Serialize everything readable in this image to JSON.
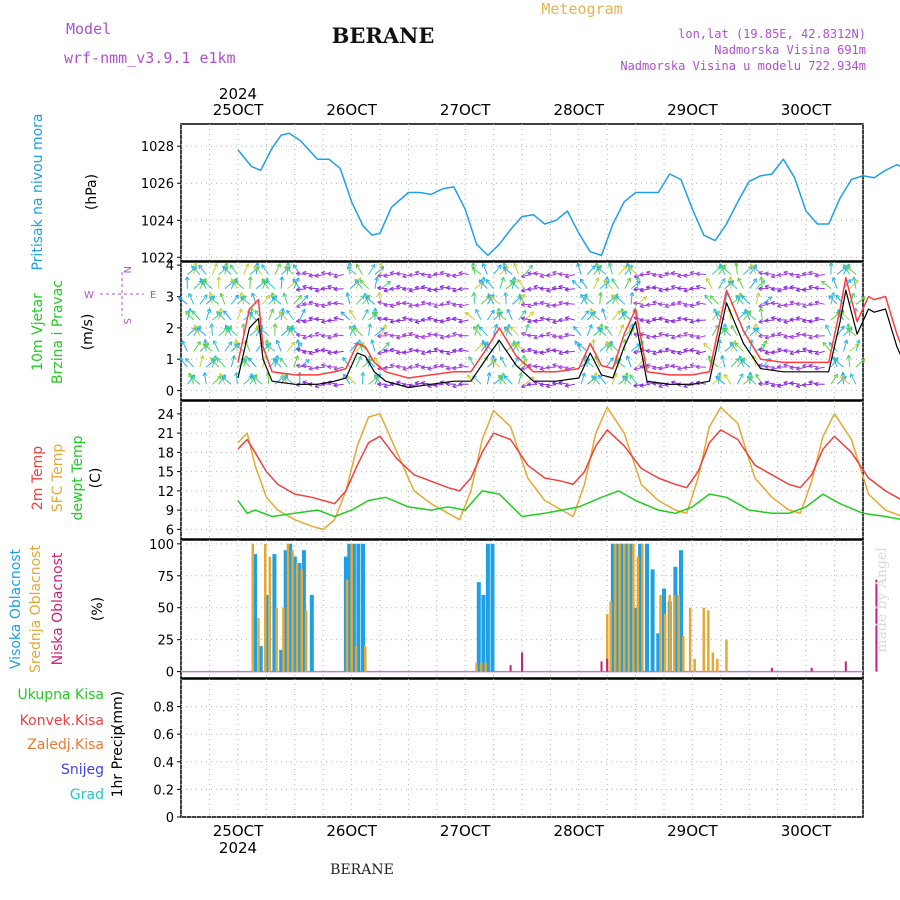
{
  "header": {
    "model_label": "Model",
    "model_name": "wrf-nmm_v3.9.1 e1km",
    "station": "BERANE",
    "product": "Meteogram",
    "coords": "lon,lat (19.85E, 42.8312N)",
    "elevation": "Nadmorska Visina 691m",
    "model_elevation": "Nadmorska Visina u modelu 722.934m"
  },
  "colors": {
    "pressure": "#1ea0e6",
    "wind_speed": "#000000",
    "wind_gust": "#ff3c3c",
    "temp_2m": "#f04040",
    "temp_sfc": "#e6a832",
    "dewpoint": "#22cc22",
    "cloud_high": "#1ea0e6",
    "cloud_mid": "#e6a832",
    "cloud_low": "#cc1f7a",
    "model_label": "#b050d0",
    "product": "#e6b450",
    "precip_total": "#22cc22",
    "precip_conv": "#f04040",
    "precip_frozen": "#f07830",
    "snow": "#4040f0",
    "graupel": "#20c8c8"
  },
  "date_axis": {
    "year": "2024",
    "labels": [
      "25OCT",
      "26OCT",
      "27OCT",
      "28OCT",
      "29OCT",
      "30OCT"
    ]
  },
  "footer": {
    "station": "BERANE",
    "credit": "made by Angel"
  },
  "chart_data": [
    {
      "type": "line",
      "panel": "pressure",
      "ylabel": [
        "Pritisak na nivou mora",
        "(hPa)"
      ],
      "ylim": [
        1021.8,
        1029.2
      ],
      "yticks": [
        1022,
        1024,
        1026,
        1028
      ],
      "xlim": [
        0,
        6.12
      ],
      "grid": true,
      "series": [
        {
          "x": [
            0,
            0.12,
            0.2,
            0.3,
            0.38,
            0.45,
            0.55,
            0.7,
            0.8,
            0.9,
            1.0,
            1.1,
            1.18,
            1.25,
            1.35,
            1.5,
            1.6,
            1.7,
            1.8,
            1.9,
            2.0,
            2.1,
            2.2,
            2.3,
            2.4,
            2.5,
            2.6,
            2.7,
            2.8,
            2.9,
            3.0,
            3.1,
            3.2,
            3.3,
            3.4,
            3.5,
            3.6,
            3.7,
            3.8,
            3.9,
            4.0,
            4.1,
            4.2,
            4.3,
            4.4,
            4.5,
            4.6,
            4.7,
            4.8,
            4.9,
            5.0,
            5.1,
            5.2,
            5.3,
            5.4,
            5.5,
            5.6,
            5.7,
            5.8,
            5.9,
            6.0,
            6.12
          ],
          "values": [
            1027.8,
            1026.9,
            1026.7,
            1027.9,
            1028.6,
            1028.7,
            1028.3,
            1027.3,
            1027.3,
            1026.8,
            1025.0,
            1023.7,
            1023.2,
            1023.3,
            1024.7,
            1025.5,
            1025.5,
            1025.4,
            1025.7,
            1025.8,
            1024.6,
            1022.7,
            1022.1,
            1022.7,
            1023.5,
            1024.2,
            1024.3,
            1023.8,
            1024.0,
            1024.5,
            1023.3,
            1022.3,
            1022.1,
            1023.8,
            1025.0,
            1025.5,
            1025.5,
            1025.5,
            1026.5,
            1026.2,
            1024.6,
            1023.2,
            1022.9,
            1023.8,
            1025.0,
            1026.1,
            1026.4,
            1026.5,
            1027.3,
            1026.3,
            1024.5,
            1023.8,
            1023.8,
            1025.2,
            1026.2,
            1026.4,
            1026.3,
            1026.7,
            1027.0,
            1026.7,
            1025.8,
            1024.1
          ]
        }
      ]
    },
    {
      "type": "line",
      "panel": "wind",
      "ylabel": [
        "10m Vjetar",
        "Brzina i Pravac",
        "(m/s)"
      ],
      "direction_key": [
        "N",
        "S",
        "W",
        "E"
      ],
      "ylim": [
        -0.3,
        4.1
      ],
      "yticks": [
        0,
        1,
        2,
        3,
        4
      ],
      "xlim": [
        0,
        6.12
      ],
      "grid": true,
      "series": [
        {
          "name": "speed",
          "x": [
            0,
            0.1,
            0.18,
            0.22,
            0.3,
            0.5,
            0.7,
            0.85,
            0.95,
            1.05,
            1.12,
            1.2,
            1.3,
            1.5,
            1.7,
            1.9,
            2.05,
            2.2,
            2.3,
            2.45,
            2.6,
            2.8,
            3.0,
            3.1,
            3.2,
            3.3,
            3.4,
            3.5,
            3.6,
            3.8,
            4.0,
            4.15,
            4.3,
            4.45,
            4.6,
            4.8,
            5.0,
            5.2,
            5.3,
            5.35,
            5.45,
            5.55,
            5.6,
            5.7,
            5.8,
            5.9,
            6.0,
            6.12
          ],
          "values": [
            0.4,
            2.0,
            2.3,
            1.0,
            0.3,
            0.2,
            0.2,
            0.3,
            0.4,
            1.2,
            1.1,
            0.6,
            0.3,
            0.1,
            0.2,
            0.3,
            0.3,
            1.1,
            1.6,
            0.8,
            0.3,
            0.3,
            0.4,
            1.2,
            0.5,
            0.4,
            1.4,
            2.2,
            0.3,
            0.2,
            0.2,
            0.3,
            2.8,
            1.5,
            0.7,
            0.6,
            0.6,
            0.6,
            2.2,
            3.2,
            1.8,
            2.6,
            2.5,
            2.6,
            1.4,
            0.6,
            1.2,
            3.0
          ]
        },
        {
          "name": "gust",
          "x": [
            0,
            0.1,
            0.18,
            0.22,
            0.3,
            0.5,
            0.7,
            0.85,
            0.95,
            1.05,
            1.12,
            1.2,
            1.3,
            1.5,
            1.7,
            1.9,
            2.05,
            2.2,
            2.3,
            2.45,
            2.6,
            2.8,
            3.0,
            3.1,
            3.2,
            3.3,
            3.4,
            3.5,
            3.6,
            3.8,
            4.0,
            4.15,
            4.3,
            4.45,
            4.6,
            4.8,
            5.0,
            5.2,
            5.3,
            5.35,
            5.45,
            5.55,
            5.6,
            5.7,
            5.8,
            5.9,
            6.0,
            6.12
          ],
          "values": [
            0.9,
            2.6,
            2.9,
            1.4,
            0.6,
            0.5,
            0.5,
            0.6,
            0.7,
            1.5,
            1.4,
            0.9,
            0.6,
            0.4,
            0.5,
            0.6,
            0.6,
            1.4,
            2.0,
            1.1,
            0.6,
            0.6,
            0.7,
            1.5,
            0.8,
            0.7,
            1.8,
            2.6,
            0.6,
            0.5,
            0.5,
            0.6,
            3.2,
            1.9,
            1.0,
            0.9,
            0.9,
            0.9,
            2.6,
            3.6,
            2.2,
            3.0,
            2.9,
            3.0,
            1.8,
            0.9,
            1.6,
            3.4
          ]
        }
      ]
    },
    {
      "type": "line",
      "panel": "temperature",
      "ylabel": [
        "2m Temp",
        "SFC Temp",
        "dewpt Temp",
        "(C)"
      ],
      "ylim": [
        4.5,
        26
      ],
      "yticks": [
        6,
        9,
        12,
        15,
        18,
        21,
        24
      ],
      "xlim": [
        0,
        6.12
      ],
      "grid": true,
      "series": [
        {
          "name": "2m Temp",
          "x": [
            0,
            0.08,
            0.15,
            0.25,
            0.35,
            0.5,
            0.65,
            0.75,
            0.85,
            0.95,
            1.05,
            1.15,
            1.25,
            1.4,
            1.55,
            1.7,
            1.85,
            1.95,
            2.05,
            2.15,
            2.25,
            2.4,
            2.55,
            2.7,
            2.85,
            2.95,
            3.05,
            3.15,
            3.25,
            3.4,
            3.55,
            3.7,
            3.85,
            3.95,
            4.05,
            4.15,
            4.25,
            4.4,
            4.55,
            4.7,
            4.85,
            4.95,
            5.05,
            5.15,
            5.25,
            5.4,
            5.55,
            5.7,
            5.85,
            6.0,
            6.12
          ],
          "values": [
            18.5,
            20.0,
            18.0,
            15.0,
            13.0,
            11.5,
            11.0,
            10.5,
            10.0,
            12.0,
            16.0,
            19.5,
            20.5,
            17.0,
            14.5,
            13.5,
            12.5,
            12.0,
            14.0,
            18.0,
            21.0,
            20.0,
            16.0,
            14.0,
            13.5,
            13.0,
            15.0,
            19.0,
            21.5,
            19.0,
            15.5,
            14.0,
            13.0,
            12.5,
            15.0,
            19.5,
            21.5,
            20.0,
            16.0,
            14.5,
            13.0,
            12.5,
            14.5,
            18.5,
            20.5,
            18.0,
            14.0,
            12.0,
            10.5,
            10.0,
            17.5
          ]
        },
        {
          "name": "SFC Temp",
          "x": [
            0,
            0.08,
            0.15,
            0.25,
            0.35,
            0.5,
            0.65,
            0.75,
            0.85,
            0.95,
            1.05,
            1.15,
            1.25,
            1.4,
            1.55,
            1.7,
            1.85,
            1.95,
            2.05,
            2.15,
            2.25,
            2.4,
            2.55,
            2.7,
            2.85,
            2.95,
            3.05,
            3.15,
            3.25,
            3.4,
            3.55,
            3.7,
            3.85,
            3.95,
            4.05,
            4.15,
            4.25,
            4.4,
            4.55,
            4.7,
            4.85,
            4.95,
            5.05,
            5.15,
            5.25,
            5.4,
            5.55,
            5.7,
            5.85,
            6.0,
            6.12
          ],
          "values": [
            19.5,
            21.0,
            16.0,
            11.0,
            9.0,
            7.5,
            6.5,
            6.0,
            7.5,
            12.0,
            19.0,
            23.5,
            24.0,
            18.0,
            12.0,
            10.0,
            8.5,
            7.5,
            12.0,
            20.0,
            24.5,
            22.0,
            14.0,
            10.5,
            9.0,
            8.0,
            13.0,
            21.0,
            25.0,
            21.0,
            13.0,
            10.5,
            9.0,
            8.5,
            14.0,
            22.0,
            25.0,
            22.5,
            14.0,
            11.0,
            9.0,
            8.5,
            13.5,
            20.5,
            24.0,
            20.0,
            11.5,
            9.0,
            8.0,
            8.0,
            22.5
          ]
        },
        {
          "name": "dewpt Temp",
          "x": [
            0,
            0.08,
            0.15,
            0.3,
            0.5,
            0.7,
            0.85,
            1.0,
            1.15,
            1.3,
            1.5,
            1.7,
            1.85,
            2.0,
            2.15,
            2.3,
            2.5,
            2.7,
            2.85,
            3.0,
            3.2,
            3.35,
            3.5,
            3.7,
            3.85,
            4.0,
            4.15,
            4.3,
            4.5,
            4.7,
            4.85,
            5.0,
            5.15,
            5.3,
            5.5,
            5.7,
            5.85,
            6.0,
            6.12
          ],
          "values": [
            10.5,
            8.5,
            9.0,
            8.0,
            8.5,
            9.0,
            8.0,
            9.0,
            10.5,
            11.0,
            9.5,
            9.0,
            9.5,
            9.0,
            12.0,
            11.5,
            8.0,
            8.5,
            9.0,
            9.5,
            11.0,
            12.0,
            10.5,
            9.0,
            8.5,
            9.5,
            11.5,
            11.0,
            9.0,
            8.5,
            8.5,
            9.5,
            11.5,
            10.0,
            8.5,
            8.0,
            7.5,
            8.5,
            9.5
          ]
        }
      ]
    },
    {
      "type": "bar",
      "panel": "clouds",
      "ylabel": [
        "Visoka Oblacnost",
        "Srednja Oblacnost",
        "Niska Oblacnost",
        "(%)"
      ],
      "ylim": [
        -5,
        103
      ],
      "yticks": [
        0,
        25,
        50,
        75,
        100
      ],
      "xlim": [
        0,
        6.12
      ],
      "grid": true,
      "series": [
        {
          "name": "Visoka Oblacnost",
          "x": [
            0.15,
            0.2,
            0.25,
            0.32,
            0.38,
            0.42,
            0.46,
            0.5,
            0.54,
            0.58,
            0.65,
            0.95,
            0.98,
            1.02,
            1.06,
            1.1,
            2.12,
            2.16,
            2.2,
            2.24,
            3.3,
            3.34,
            3.38,
            3.42,
            3.46,
            3.5,
            3.54,
            3.6,
            3.65,
            3.7,
            3.75,
            3.8,
            3.85,
            3.9
          ],
          "values": [
            92,
            20,
            60,
            92,
            17,
            95,
            100,
            90,
            85,
            95,
            60,
            90,
            100,
            100,
            100,
            100,
            70,
            60,
            100,
            100,
            100,
            100,
            100,
            100,
            100,
            50,
            100,
            100,
            80,
            30,
            65,
            55,
            82,
            95
          ]
        },
        {
          "name": "Srednja Oblacnost",
          "x": [
            0.13,
            0.18,
            0.24,
            0.28,
            0.34,
            0.4,
            0.44,
            0.48,
            0.52,
            0.56,
            0.6,
            0.96,
            1.0,
            1.04,
            1.12,
            2.1,
            2.14,
            2.18,
            3.25,
            3.28,
            3.32,
            3.36,
            3.4,
            3.44,
            3.48,
            3.52,
            3.56,
            3.72,
            3.76,
            3.8,
            3.84,
            3.88,
            3.92,
            3.98,
            4.02,
            4.1,
            4.14,
            4.18,
            4.22,
            4.3
          ],
          "values": [
            100,
            42,
            100,
            90,
            50,
            50,
            100,
            95,
            85,
            80,
            48,
            72,
            100,
            20,
            20,
            7,
            7,
            7,
            45,
            55,
            100,
            100,
            100,
            100,
            100,
            90,
            100,
            60,
            45,
            60,
            60,
            60,
            28,
            50,
            10,
            50,
            48,
            15,
            10,
            25
          ]
        },
        {
          "name": "Niska Oblacnost",
          "x": [
            2.4,
            2.5,
            3.2,
            3.25,
            4.7,
            5.05,
            5.35,
            5.62,
            5.9
          ],
          "values": [
            5,
            15,
            8,
            10,
            3,
            3,
            8,
            72,
            6
          ]
        }
      ]
    },
    {
      "type": "bar",
      "panel": "precipitation",
      "ylabel": [
        "1hr Precip",
        "(mm)"
      ],
      "legend": [
        "Ukupna Kisa",
        "Konvek.Kisa",
        "Zaledj.Kisa",
        "Snijeg",
        "Grad"
      ],
      "ylim": [
        0,
        1.0
      ],
      "yticks": [
        0,
        0.2,
        0.4,
        0.6,
        0.8
      ],
      "xlim": [
        0,
        6.12
      ],
      "grid": true,
      "series": []
    }
  ]
}
